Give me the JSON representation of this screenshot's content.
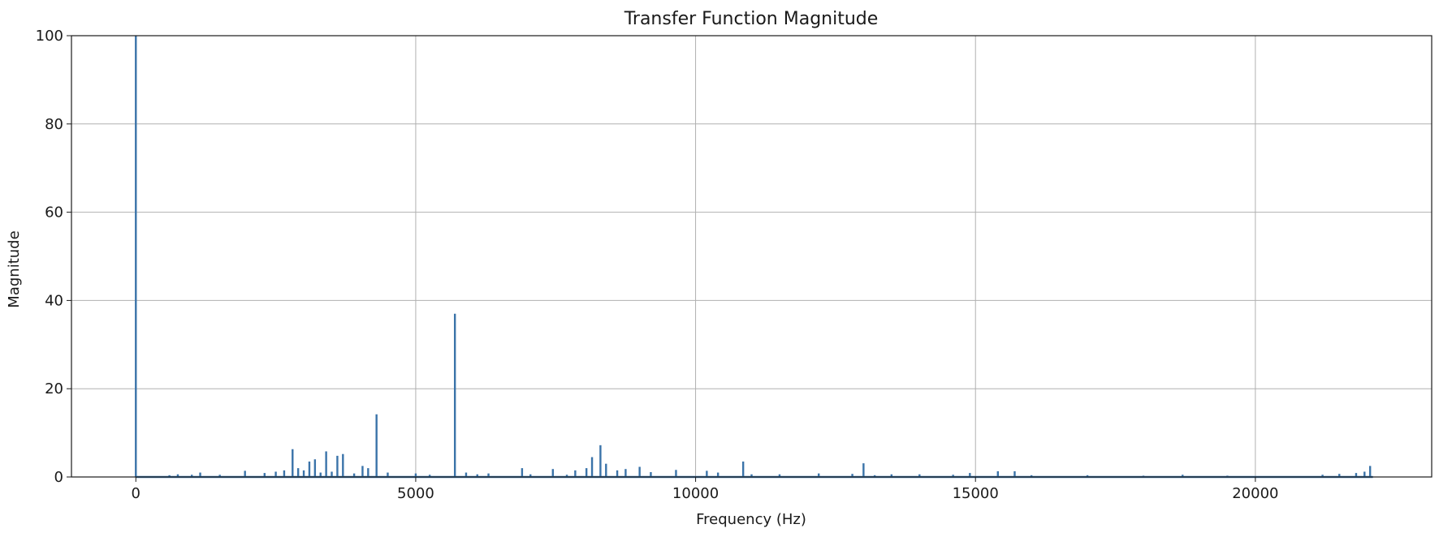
{
  "chart_data": {
    "type": "line",
    "title": "Transfer Function Magnitude",
    "xlabel": "Frequency (Hz)",
    "ylabel": "Magnitude",
    "xlim": [
      -1150,
      23150
    ],
    "ylim": [
      0,
      100
    ],
    "xticks": [
      0,
      5000,
      10000,
      15000,
      20000
    ],
    "xtick_labels": [
      "0",
      "5000",
      "10000",
      "15000",
      "20000"
    ],
    "yticks": [
      0,
      20,
      40,
      60,
      80,
      100
    ],
    "ytick_labels": [
      "0",
      "20",
      "40",
      "60",
      "80",
      "100"
    ],
    "grid": true,
    "legend": false,
    "series": [
      {
        "color": "#3a73a9",
        "x": [
          0,
          600,
          750,
          1000,
          1150,
          1500,
          1950,
          2300,
          2500,
          2650,
          2800,
          2900,
          3000,
          3100,
          3200,
          3300,
          3400,
          3500,
          3600,
          3700,
          3900,
          4050,
          4150,
          4300,
          4500,
          5000,
          5250,
          5700,
          5900,
          6100,
          6300,
          6900,
          7050,
          7450,
          7700,
          7850,
          8050,
          8150,
          8300,
          8400,
          8600,
          8750,
          9000,
          9200,
          9650,
          10200,
          10400,
          10850,
          11000,
          11500,
          12200,
          12800,
          13000,
          13200,
          13500,
          14000,
          14600,
          14900,
          15400,
          15700,
          16000,
          17000,
          18000,
          18700,
          19500,
          21200,
          21500,
          21800,
          21950,
          22050,
          22100
        ],
        "y": [
          100,
          0.4,
          0.6,
          0.5,
          1.0,
          0.5,
          1.4,
          0.9,
          1.2,
          1.5,
          6.3,
          2.0,
          1.5,
          3.5,
          4.0,
          1.0,
          5.8,
          1.2,
          4.8,
          5.2,
          0.8,
          2.5,
          2.0,
          14.2,
          1.0,
          0.8,
          0.5,
          37,
          1.0,
          0.6,
          0.8,
          2.0,
          0.6,
          1.8,
          0.5,
          1.5,
          2.0,
          4.5,
          7.2,
          3.0,
          1.5,
          1.8,
          2.3,
          1.1,
          1.6,
          1.4,
          1.0,
          3.5,
          0.6,
          0.6,
          0.8,
          0.7,
          3.1,
          0.4,
          0.6,
          0.6,
          0.5,
          0.9,
          1.3,
          1.3,
          0.4,
          0.4,
          0.3,
          0.5,
          0.3,
          0.5,
          0.7,
          0.9,
          1.2,
          2.5,
          0
        ]
      }
    ]
  }
}
